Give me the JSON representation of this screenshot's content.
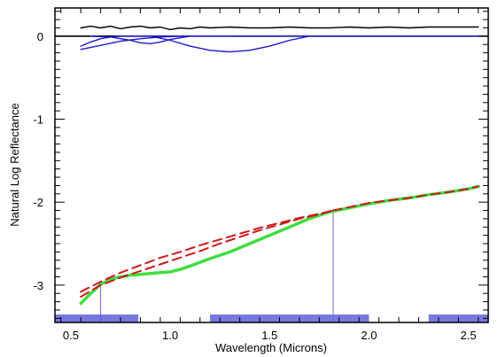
{
  "chart_data": {
    "type": "line",
    "title": "",
    "xlabel": "Wavelength (Microns)",
    "ylabel": "Natural Log Reflectance",
    "xlim": [
      0.42,
      2.6
    ],
    "ylim": [
      -3.45,
      0.34
    ],
    "grid": false,
    "legend": "none",
    "x_ticks": [
      0.5,
      1.0,
      1.5,
      2.0,
      2.5
    ],
    "x_tick_labels": [
      "0.5",
      "1.0",
      "1.5",
      "2.0",
      "2.5"
    ],
    "y_ticks": [
      0,
      -1,
      -2,
      -3
    ],
    "y_tick_labels": [
      "0",
      "-1",
      "-2",
      "-3"
    ],
    "reference_line_y": 0,
    "shaded_x_ranges": [
      [
        0.42,
        0.84
      ],
      [
        1.2,
        2.0
      ],
      [
        2.3,
        2.6
      ]
    ],
    "markers_x": [
      0.65,
      1.82
    ],
    "series": [
      {
        "style": "solid",
        "color": "#000000",
        "x": [
          0.55,
          0.6,
          0.65,
          0.7,
          0.75,
          0.8,
          0.85,
          0.9,
          0.95,
          1.0,
          1.05,
          1.1,
          1.15,
          1.2,
          1.3,
          1.4,
          1.5,
          1.6,
          1.7,
          1.8,
          1.9,
          2.0,
          2.1,
          2.2,
          2.3,
          2.4,
          2.5,
          2.55
        ],
        "y": [
          0.1,
          0.12,
          0.1,
          0.12,
          0.09,
          0.11,
          0.12,
          0.1,
          0.11,
          0.08,
          0.1,
          0.09,
          0.11,
          0.1,
          0.11,
          0.1,
          0.1,
          0.11,
          0.1,
          0.1,
          0.11,
          0.1,
          0.11,
          0.1,
          0.11,
          0.11,
          0.11,
          0.11
        ]
      },
      {
        "style": "solid",
        "color": "#1a1acc",
        "x": [
          0.55,
          0.65,
          0.75,
          0.85,
          0.95,
          1.05,
          1.15,
          1.3,
          1.5,
          1.7,
          1.9,
          2.1,
          2.3,
          2.5,
          2.55
        ],
        "y": [
          -0.16,
          -0.11,
          -0.06,
          -0.03,
          -0.01,
          0.0,
          0.0,
          0.0,
          0.0,
          0.0,
          0.0,
          0.0,
          0.0,
          0.0,
          0.0
        ]
      },
      {
        "style": "solid",
        "color": "#1a1acc",
        "x": [
          0.55,
          0.6,
          0.65,
          0.7,
          0.75,
          0.8,
          0.85,
          0.9,
          0.95,
          1.0,
          1.05
        ],
        "y": [
          -0.12,
          -0.07,
          -0.03,
          -0.01,
          0.0,
          0.0,
          0.0,
          0.0,
          0.0,
          0.0,
          0.0
        ]
      },
      {
        "style": "solid",
        "color": "#1a1acc",
        "x": [
          0.6,
          0.7,
          0.8,
          0.85,
          0.9,
          0.95,
          1.0,
          1.05,
          1.1,
          1.2,
          1.3
        ],
        "y": [
          0.0,
          -0.01,
          -0.05,
          -0.08,
          -0.09,
          -0.07,
          -0.04,
          -0.02,
          0.0,
          0.0,
          0.0
        ]
      },
      {
        "style": "solid",
        "color": "#1a1acc",
        "x": [
          0.9,
          1.0,
          1.1,
          1.2,
          1.3,
          1.4,
          1.5,
          1.6,
          1.7
        ],
        "y": [
          0.0,
          -0.05,
          -0.12,
          -0.17,
          -0.19,
          -0.17,
          -0.12,
          -0.05,
          0.0
        ]
      },
      {
        "style": "solid",
        "color": "#40dd40",
        "x": [
          0.55,
          0.6,
          0.65,
          0.7,
          0.75,
          0.8,
          0.85,
          0.9,
          0.95,
          1.0,
          1.05,
          1.1,
          1.2,
          1.3,
          1.4,
          1.5,
          1.6,
          1.7,
          1.8,
          1.9,
          2.0,
          2.1,
          2.2,
          2.3,
          2.4,
          2.5,
          2.55
        ],
        "y": [
          -3.22,
          -3.1,
          -2.99,
          -2.93,
          -2.9,
          -2.88,
          -2.87,
          -2.86,
          -2.85,
          -2.84,
          -2.81,
          -2.77,
          -2.68,
          -2.6,
          -2.5,
          -2.4,
          -2.3,
          -2.2,
          -2.12,
          -2.07,
          -2.02,
          -1.98,
          -1.95,
          -1.91,
          -1.88,
          -1.84,
          -1.81
        ]
      },
      {
        "style": "dashed",
        "color": "#cc1a1a",
        "x": [
          0.55,
          0.65,
          0.75,
          0.85,
          0.95,
          1.05,
          1.15,
          1.25,
          1.35,
          1.45,
          1.55,
          1.65,
          1.75,
          1.82
        ],
        "y": [
          -3.08,
          -2.96,
          -2.85,
          -2.76,
          -2.67,
          -2.6,
          -2.52,
          -2.45,
          -2.38,
          -2.31,
          -2.25,
          -2.19,
          -2.14,
          -2.1
        ]
      },
      {
        "style": "dashed",
        "color": "#cc1a1a",
        "x": [
          0.55,
          0.65,
          0.75,
          0.85,
          0.95,
          1.05,
          1.15,
          1.25,
          1.35,
          1.45,
          1.55,
          1.65,
          1.75,
          1.82
        ],
        "y": [
          -3.14,
          -3.0,
          -2.91,
          -2.83,
          -2.75,
          -2.67,
          -2.59,
          -2.5,
          -2.42,
          -2.34,
          -2.27,
          -2.2,
          -2.15,
          -2.1
        ]
      },
      {
        "style": "dashed",
        "color": "#cc1a1a",
        "x": [
          1.82,
          1.9,
          2.0,
          2.1,
          2.2,
          2.3,
          2.4,
          2.5,
          2.55
        ],
        "y": [
          -2.1,
          -2.06,
          -2.01,
          -1.98,
          -1.95,
          -1.91,
          -1.88,
          -1.84,
          -1.81
        ]
      }
    ]
  }
}
